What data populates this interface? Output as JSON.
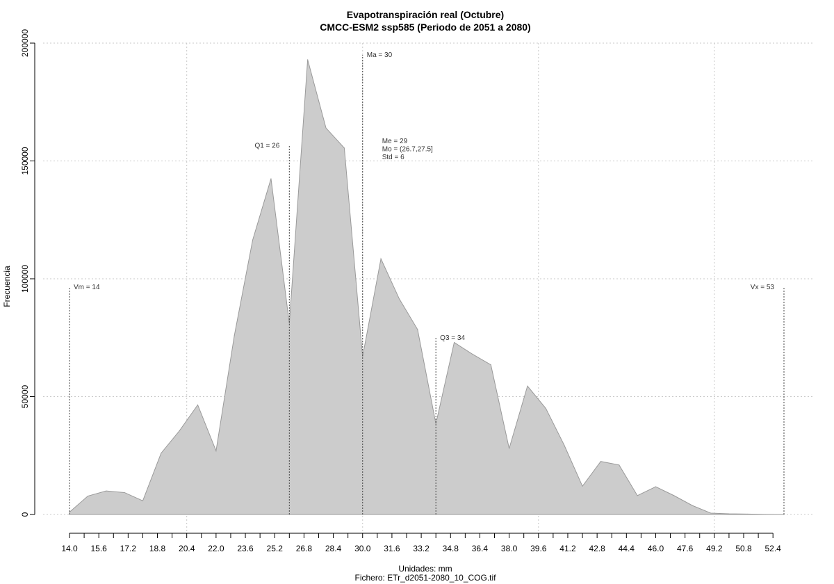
{
  "chart_data": {
    "type": "area",
    "title": "Evapotranspiración real (Octubre)",
    "subtitle": "CMCC-ESM2 ssp585 (Periodo de 2051 a 2080)",
    "xlabel": "Unidades: mm",
    "ylabel": "Frecuencia",
    "source": "Fichero: ETr_d2051-2080_10_COG.tif",
    "xlim": [
      14.0,
      53.0
    ],
    "ylim": [
      0,
      200000
    ],
    "x_ticks": [
      14.0,
      15.6,
      17.2,
      18.8,
      20.4,
      22.0,
      23.6,
      25.2,
      26.8,
      28.4,
      30.0,
      31.6,
      33.2,
      34.8,
      36.4,
      38.0,
      39.6,
      41.2,
      42.8,
      44.4,
      46.0,
      47.6,
      49.2,
      50.8,
      52.4
    ],
    "y_ticks": [
      0,
      50000,
      100000,
      150000,
      200000
    ],
    "x_tick_labels": [
      "14.0",
      "15.6",
      "17.2",
      "18.8",
      "20.4",
      "22.0",
      "23.6",
      "25.2",
      "26.8",
      "28.4",
      "30.0",
      "31.6",
      "33.2",
      "34.8",
      "36.4",
      "38.0",
      "39.6",
      "41.2",
      "42.8",
      "44.4",
      "46.0",
      "47.6",
      "49.2",
      "50.8",
      "52.4"
    ],
    "y_tick_labels": [
      "0",
      "50000",
      "100000",
      "150000",
      "200000"
    ],
    "x_grid": [
      20.4,
      30.0,
      39.6,
      49.2
    ],
    "x": [
      14.0,
      15.0,
      16.0,
      17.0,
      18.0,
      19.0,
      20.0,
      21.0,
      22.0,
      23.0,
      24.0,
      25.0,
      26.0,
      27.0,
      28.0,
      29.0,
      30.0,
      31.0,
      32.0,
      33.0,
      34.0,
      35.0,
      36.0,
      37.0,
      38.0,
      39.0,
      40.0,
      41.0,
      42.0,
      43.0,
      44.0,
      45.0,
      46.0,
      47.0,
      48.0,
      49.0,
      50.0,
      51.0,
      52.0,
      53.0
    ],
    "values": [
      1000,
      7800,
      10000,
      9300,
      5800,
      26000,
      35500,
      46500,
      27000,
      76000,
      116500,
      142500,
      81000,
      193000,
      164000,
      155500,
      67000,
      108500,
      91500,
      78500,
      38500,
      73000,
      68000,
      63500,
      28000,
      54500,
      45000,
      29500,
      12000,
      22500,
      21000,
      8000,
      11800,
      8000,
      3800,
      600,
      300,
      200,
      50,
      0
    ],
    "annotations": [
      {
        "key": "vm",
        "label": "Vm = 14",
        "x": 14.0,
        "y_top": 96500,
        "side": "right"
      },
      {
        "key": "q1",
        "label": "Q1 = 26",
        "x": 26.0,
        "y_top": 156500,
        "side": "left"
      },
      {
        "key": "ma",
        "label": "Ma = 30",
        "x": 30.0,
        "y_top": 195000,
        "side": "right"
      },
      {
        "key": "q3",
        "label": "Q3 = 34",
        "x": 34.0,
        "y_top": 75000,
        "side": "right"
      },
      {
        "key": "vx",
        "label": "Vx = 53",
        "x": 53.0,
        "y_top": 96500,
        "side": "left"
      }
    ],
    "stats": [
      "Me = 29",
      "Mo = (26.7,27.5]",
      "Std = 6"
    ],
    "grid": true
  }
}
